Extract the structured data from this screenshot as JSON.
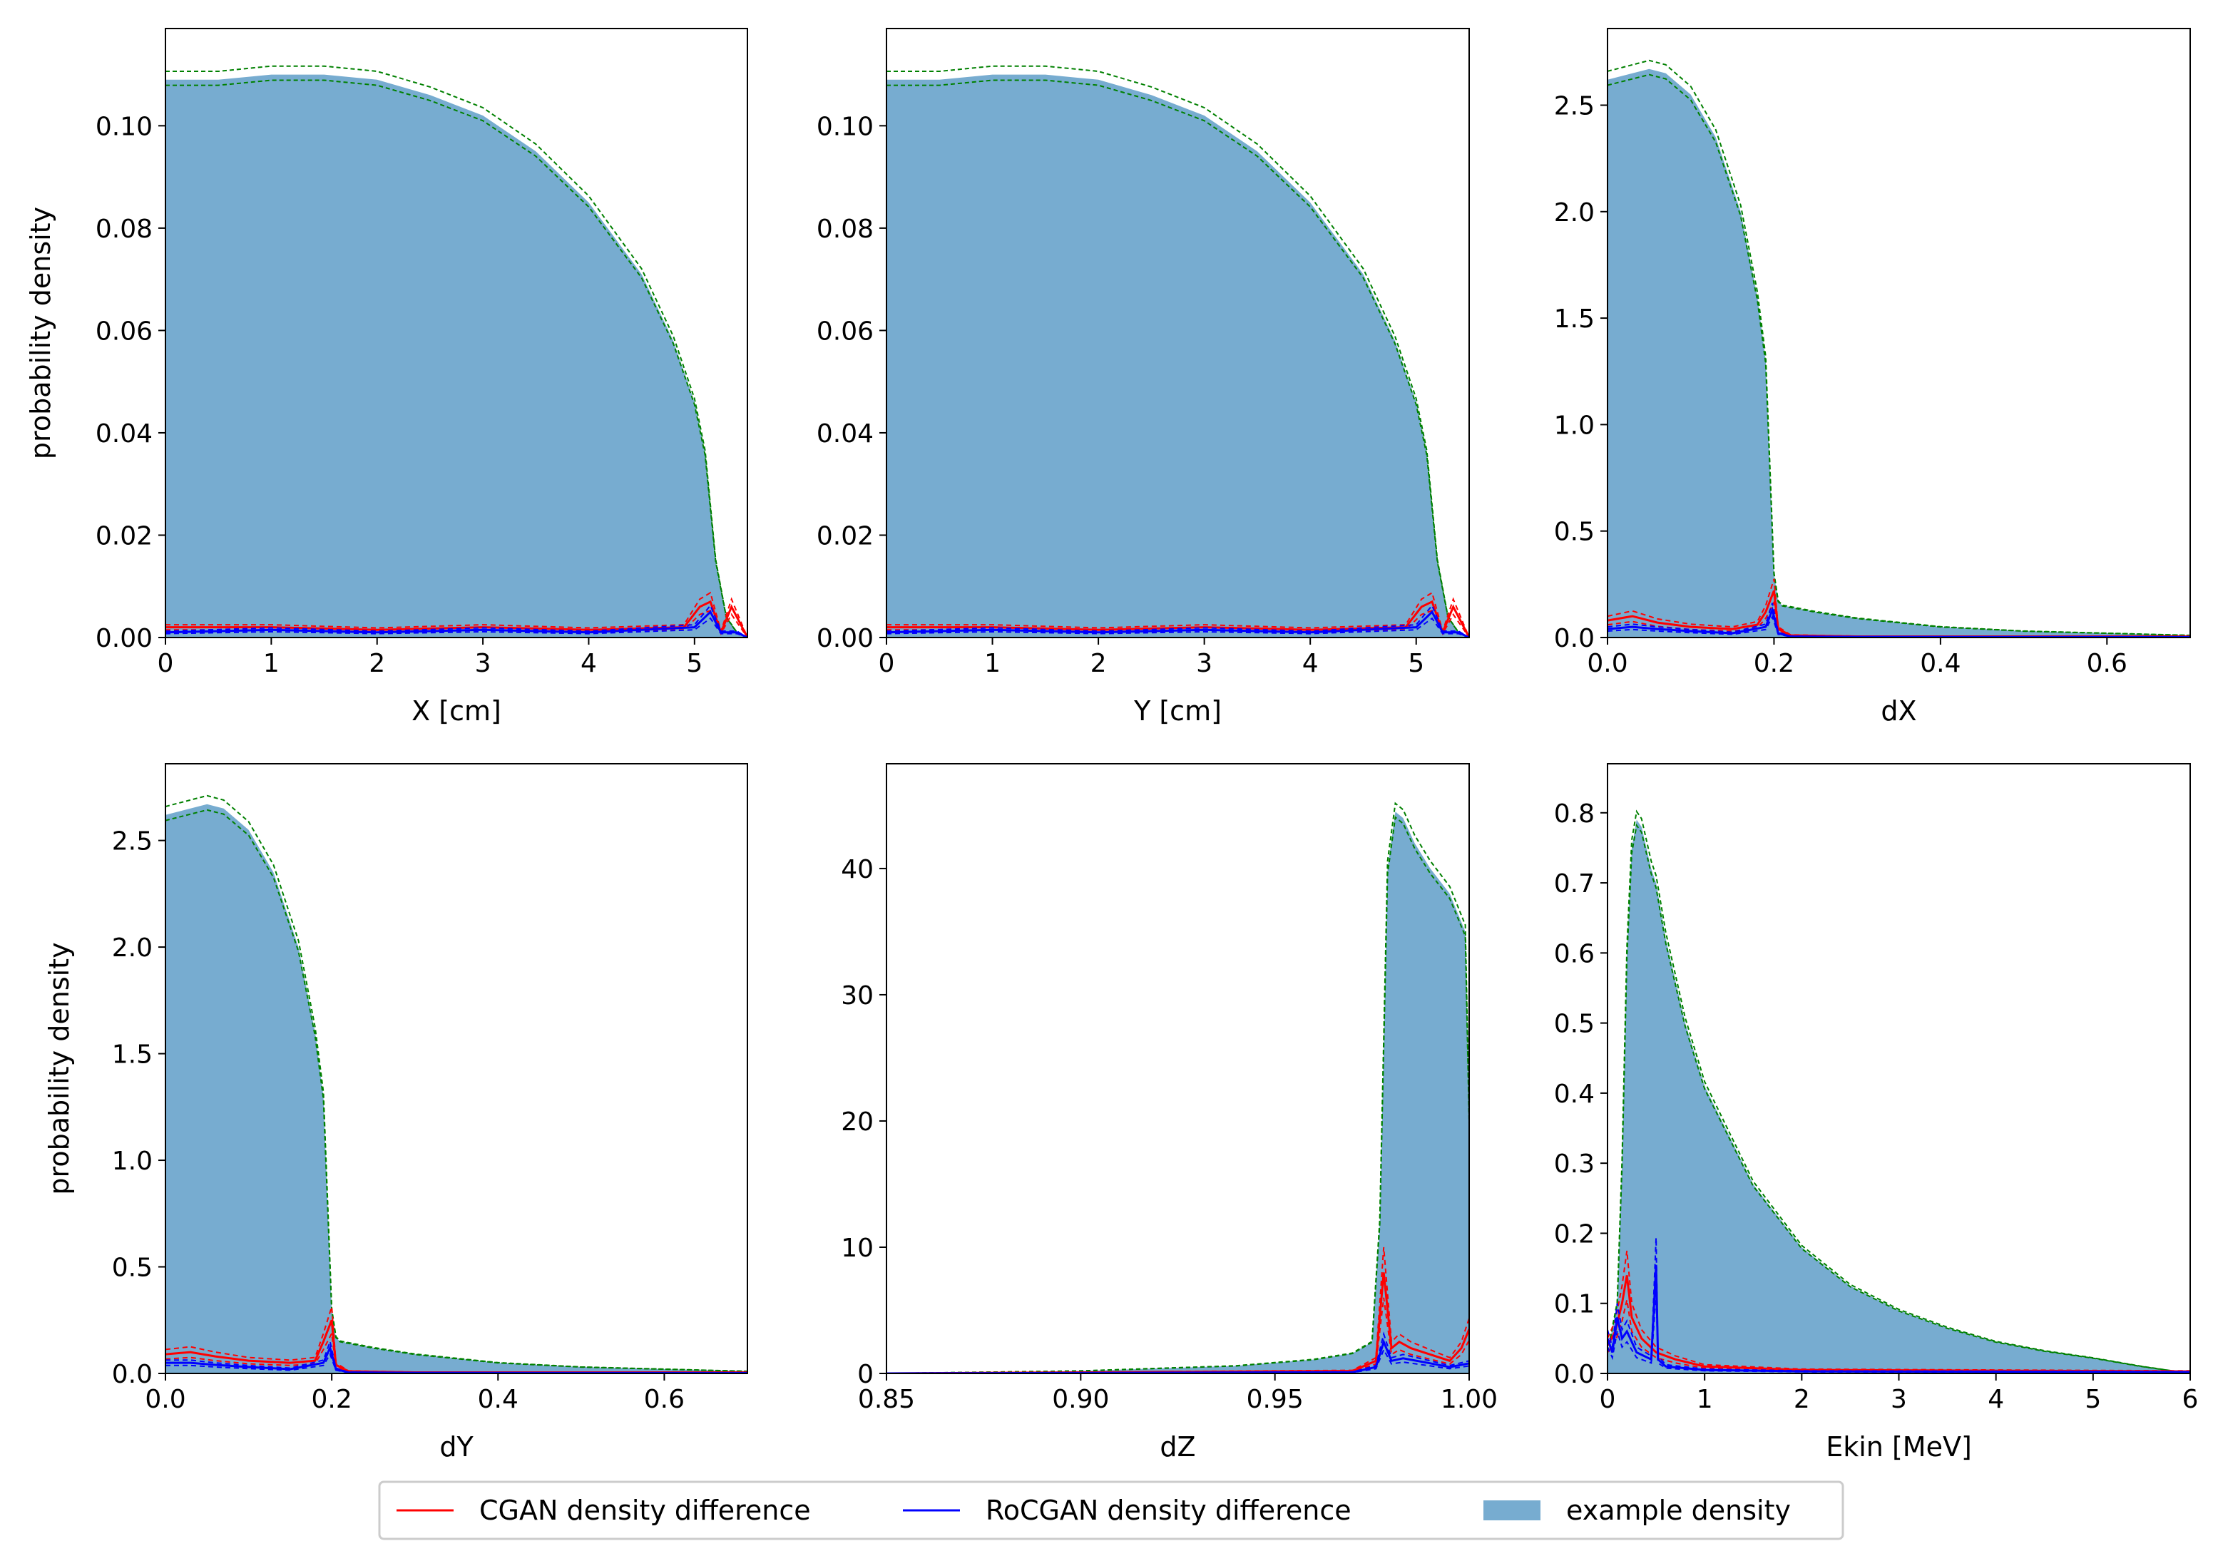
{
  "colors": {
    "density_fill": "#77acd0",
    "cgan": "#ff0000",
    "rocgan": "#0000ff",
    "envelope": "#008000"
  },
  "legend": {
    "items": [
      {
        "label": "CGAN density difference",
        "kind": "line",
        "color": "#ff0000"
      },
      {
        "label": "RoCGAN density difference",
        "kind": "line",
        "color": "#0000ff"
      },
      {
        "label": "example density",
        "kind": "patch",
        "color": "#77acd0"
      }
    ]
  },
  "chart_data": [
    {
      "type": "area",
      "id": "x",
      "xlabel": "X [cm]",
      "ylabel": "probability density",
      "xlim": [
        0,
        5.5
      ],
      "ylim": [
        0,
        0.119
      ],
      "xticks": [
        0,
        1,
        2,
        3,
        4,
        5
      ],
      "xtick_labels": [
        "0",
        "1",
        "2",
        "3",
        "4",
        "5"
      ],
      "yticks": [
        0,
        0.02,
        0.04,
        0.06,
        0.08,
        0.1
      ],
      "ytick_labels": [
        "0.00",
        "0.02",
        "0.04",
        "0.06",
        "0.08",
        "0.10"
      ],
      "series": [
        {
          "name": "example density",
          "x": [
            0,
            0.5,
            1,
            1.5,
            2,
            2.5,
            3,
            3.5,
            4,
            4.5,
            4.8,
            5.0,
            5.1,
            5.2,
            5.3,
            5.4,
            5.5
          ],
          "values": [
            0.109,
            0.109,
            0.11,
            0.11,
            0.109,
            0.106,
            0.102,
            0.095,
            0.085,
            0.071,
            0.058,
            0.046,
            0.036,
            0.015,
            0.004,
            0.001,
            0.0
          ]
        },
        {
          "name": "CGAN density difference",
          "x": [
            0,
            1,
            2,
            3,
            4,
            4.9,
            5.05,
            5.15,
            5.25,
            5.35,
            5.45,
            5.5
          ],
          "values": [
            0.002,
            0.002,
            0.0015,
            0.002,
            0.0015,
            0.002,
            0.006,
            0.007,
            0.001,
            0.006,
            0.002,
            0.0
          ]
        },
        {
          "name": "RoCGAN density difference",
          "x": [
            0,
            1,
            2,
            3,
            4,
            5.0,
            5.1,
            5.15,
            5.25,
            5.4,
            5.5
          ],
          "values": [
            0.001,
            0.0015,
            0.001,
            0.0015,
            0.001,
            0.002,
            0.004,
            0.005,
            0.001,
            0.001,
            0.0
          ]
        }
      ]
    },
    {
      "type": "area",
      "id": "y",
      "xlabel": "Y [cm]",
      "ylabel": "",
      "xlim": [
        0,
        5.5
      ],
      "ylim": [
        0,
        0.119
      ],
      "xticks": [
        0,
        1,
        2,
        3,
        4,
        5
      ],
      "xtick_labels": [
        "0",
        "1",
        "2",
        "3",
        "4",
        "5"
      ],
      "yticks": [
        0,
        0.02,
        0.04,
        0.06,
        0.08,
        0.1
      ],
      "ytick_labels": [
        "0.00",
        "0.02",
        "0.04",
        "0.06",
        "0.08",
        "0.10"
      ],
      "series": [
        {
          "name": "example density",
          "x": [
            0,
            0.5,
            1,
            1.5,
            2,
            2.5,
            3,
            3.5,
            4,
            4.5,
            4.8,
            5.0,
            5.1,
            5.2,
            5.3,
            5.4,
            5.5
          ],
          "values": [
            0.109,
            0.109,
            0.11,
            0.11,
            0.109,
            0.106,
            0.102,
            0.095,
            0.085,
            0.071,
            0.058,
            0.046,
            0.036,
            0.015,
            0.004,
            0.001,
            0.0
          ]
        },
        {
          "name": "CGAN density difference",
          "x": [
            0,
            1,
            2,
            3,
            4,
            4.9,
            5.05,
            5.15,
            5.25,
            5.35,
            5.45,
            5.5
          ],
          "values": [
            0.002,
            0.002,
            0.0015,
            0.002,
            0.0015,
            0.002,
            0.006,
            0.007,
            0.001,
            0.006,
            0.002,
            0.0
          ]
        },
        {
          "name": "RoCGAN density difference",
          "x": [
            0,
            1,
            2,
            3,
            4,
            5.0,
            5.1,
            5.15,
            5.25,
            5.4,
            5.5
          ],
          "values": [
            0.001,
            0.0015,
            0.001,
            0.0015,
            0.001,
            0.002,
            0.004,
            0.005,
            0.001,
            0.001,
            0.0
          ]
        }
      ]
    },
    {
      "type": "area",
      "id": "dx",
      "xlabel": "dX",
      "ylabel": "",
      "xlim": [
        0,
        0.7
      ],
      "ylim": [
        0,
        2.86
      ],
      "xticks": [
        0,
        0.2,
        0.4,
        0.6
      ],
      "xtick_labels": [
        "0.0",
        "0.2",
        "0.4",
        "0.6"
      ],
      "yticks": [
        0,
        0.5,
        1.0,
        1.5,
        2.0,
        2.5
      ],
      "ytick_labels": [
        "0.0",
        "0.5",
        "1.0",
        "1.5",
        "2.0",
        "2.5"
      ],
      "series": [
        {
          "name": "example density",
          "x": [
            0,
            0.02,
            0.05,
            0.07,
            0.1,
            0.13,
            0.16,
            0.18,
            0.19,
            0.195,
            0.2,
            0.205,
            0.21,
            0.25,
            0.3,
            0.4,
            0.5,
            0.6,
            0.7
          ],
          "values": [
            2.62,
            2.64,
            2.67,
            2.65,
            2.55,
            2.35,
            2.0,
            1.6,
            1.3,
            0.8,
            0.3,
            0.17,
            0.15,
            0.12,
            0.09,
            0.05,
            0.03,
            0.02,
            0.01
          ]
        },
        {
          "name": "CGAN density difference",
          "x": [
            0,
            0.03,
            0.06,
            0.1,
            0.15,
            0.18,
            0.19,
            0.2,
            0.205,
            0.22,
            0.3,
            0.7
          ],
          "values": [
            0.08,
            0.1,
            0.07,
            0.05,
            0.04,
            0.06,
            0.12,
            0.22,
            0.04,
            0.01,
            0.005,
            0.005
          ]
        },
        {
          "name": "RoCGAN density difference",
          "x": [
            0,
            0.03,
            0.06,
            0.1,
            0.15,
            0.19,
            0.198,
            0.205,
            0.22,
            0.3,
            0.7
          ],
          "values": [
            0.04,
            0.05,
            0.04,
            0.03,
            0.02,
            0.05,
            0.13,
            0.02,
            0.005,
            0.003,
            0.002
          ]
        }
      ]
    },
    {
      "type": "area",
      "id": "dy",
      "xlabel": "dY",
      "ylabel": "probability density",
      "xlim": [
        0,
        0.7
      ],
      "ylim": [
        0,
        2.86
      ],
      "xticks": [
        0,
        0.2,
        0.4,
        0.6
      ],
      "xtick_labels": [
        "0.0",
        "0.2",
        "0.4",
        "0.6"
      ],
      "yticks": [
        0,
        0.5,
        1.0,
        1.5,
        2.0,
        2.5
      ],
      "ytick_labels": [
        "0.0",
        "0.5",
        "1.0",
        "1.5",
        "2.0",
        "2.5"
      ],
      "series": [
        {
          "name": "example density",
          "x": [
            0,
            0.02,
            0.05,
            0.07,
            0.1,
            0.13,
            0.16,
            0.18,
            0.19,
            0.195,
            0.2,
            0.205,
            0.21,
            0.25,
            0.3,
            0.4,
            0.5,
            0.6,
            0.7
          ],
          "values": [
            2.62,
            2.64,
            2.67,
            2.65,
            2.55,
            2.35,
            2.0,
            1.6,
            1.3,
            0.8,
            0.3,
            0.17,
            0.15,
            0.12,
            0.09,
            0.05,
            0.03,
            0.02,
            0.01
          ]
        },
        {
          "name": "CGAN density difference",
          "x": [
            0,
            0.03,
            0.06,
            0.1,
            0.15,
            0.18,
            0.19,
            0.2,
            0.205,
            0.22,
            0.3,
            0.7
          ],
          "values": [
            0.09,
            0.1,
            0.08,
            0.06,
            0.05,
            0.06,
            0.15,
            0.25,
            0.04,
            0.01,
            0.005,
            0.005
          ]
        },
        {
          "name": "RoCGAN density difference",
          "x": [
            0,
            0.03,
            0.06,
            0.1,
            0.15,
            0.19,
            0.198,
            0.205,
            0.22,
            0.3,
            0.7
          ],
          "values": [
            0.05,
            0.05,
            0.04,
            0.03,
            0.02,
            0.05,
            0.12,
            0.02,
            0.005,
            0.003,
            0.002
          ]
        }
      ]
    },
    {
      "type": "area",
      "id": "dz",
      "xlabel": "dZ",
      "ylabel": "",
      "xlim": [
        0.85,
        1.0
      ],
      "ylim": [
        0,
        48.3
      ],
      "xticks": [
        0.85,
        0.9,
        0.95,
        1.0
      ],
      "xtick_labels": [
        "0.85",
        "0.90",
        "0.95",
        "1.00"
      ],
      "yticks": [
        0,
        10,
        20,
        30,
        40
      ],
      "ytick_labels": [
        "0",
        "10",
        "20",
        "30",
        "40"
      ],
      "series": [
        {
          "name": "example density",
          "x": [
            0.85,
            0.9,
            0.94,
            0.96,
            0.97,
            0.975,
            0.977,
            0.979,
            0.981,
            0.983,
            0.986,
            0.99,
            0.995,
            0.999,
            1.0
          ],
          "values": [
            0.0,
            0.2,
            0.6,
            1.1,
            1.6,
            2.5,
            12,
            40,
            44.5,
            44,
            42,
            40,
            38,
            35,
            20
          ]
        },
        {
          "name": "CGAN density difference",
          "x": [
            0.85,
            0.97,
            0.976,
            0.978,
            0.98,
            0.982,
            0.985,
            0.99,
            0.995,
            0.998,
            1.0
          ],
          "values": [
            0.0,
            0.2,
            1.0,
            8.0,
            2.0,
            2.5,
            2.0,
            1.5,
            1.0,
            2.0,
            3.5
          ]
        },
        {
          "name": "RoCGAN density difference",
          "x": [
            0.85,
            0.97,
            0.976,
            0.978,
            0.98,
            0.983,
            0.99,
            0.995,
            1.0
          ],
          "values": [
            0.0,
            0.1,
            0.5,
            2.5,
            1.0,
            1.2,
            0.8,
            0.5,
            0.8
          ]
        }
      ]
    },
    {
      "type": "area",
      "id": "ekin",
      "xlabel": "Ekin [MeV]",
      "ylabel": "",
      "xlim": [
        0,
        6
      ],
      "ylim": [
        0,
        0.87
      ],
      "xticks": [
        0,
        1,
        2,
        3,
        4,
        5,
        6
      ],
      "xtick_labels": [
        "0",
        "1",
        "2",
        "3",
        "4",
        "5",
        "6"
      ],
      "yticks": [
        0,
        0.1,
        0.2,
        0.3,
        0.4,
        0.5,
        0.6,
        0.7,
        0.8
      ],
      "ytick_labels": [
        "0.0",
        "0.1",
        "0.2",
        "0.3",
        "0.4",
        "0.5",
        "0.6",
        "0.7",
        "0.8"
      ],
      "series": [
        {
          "name": "example density",
          "x": [
            0,
            0.1,
            0.15,
            0.2,
            0.25,
            0.3,
            0.35,
            0.4,
            0.45,
            0.5,
            0.6,
            0.8,
            1.0,
            1.5,
            2,
            2.5,
            3,
            3.5,
            4,
            4.5,
            5,
            5.5,
            6
          ],
          "values": [
            0.03,
            0.1,
            0.3,
            0.6,
            0.75,
            0.79,
            0.78,
            0.75,
            0.72,
            0.7,
            0.62,
            0.5,
            0.41,
            0.27,
            0.18,
            0.125,
            0.09,
            0.065,
            0.045,
            0.032,
            0.022,
            0.01,
            0.0
          ]
        },
        {
          "name": "CGAN density difference",
          "x": [
            0,
            0.08,
            0.15,
            0.2,
            0.25,
            0.35,
            0.5,
            0.7,
            1.0,
            2,
            6
          ],
          "values": [
            0.04,
            0.06,
            0.1,
            0.14,
            0.08,
            0.05,
            0.03,
            0.02,
            0.01,
            0.005,
            0.003
          ]
        },
        {
          "name": "RoCGAN density difference",
          "x": [
            0,
            0.05,
            0.1,
            0.15,
            0.2,
            0.3,
            0.45,
            0.48,
            0.5,
            0.52,
            0.6,
            1.0,
            2,
            6
          ],
          "values": [
            0.05,
            0.03,
            0.08,
            0.05,
            0.06,
            0.03,
            0.02,
            0.1,
            0.155,
            0.02,
            0.01,
            0.005,
            0.003,
            0.002
          ]
        }
      ]
    }
  ]
}
